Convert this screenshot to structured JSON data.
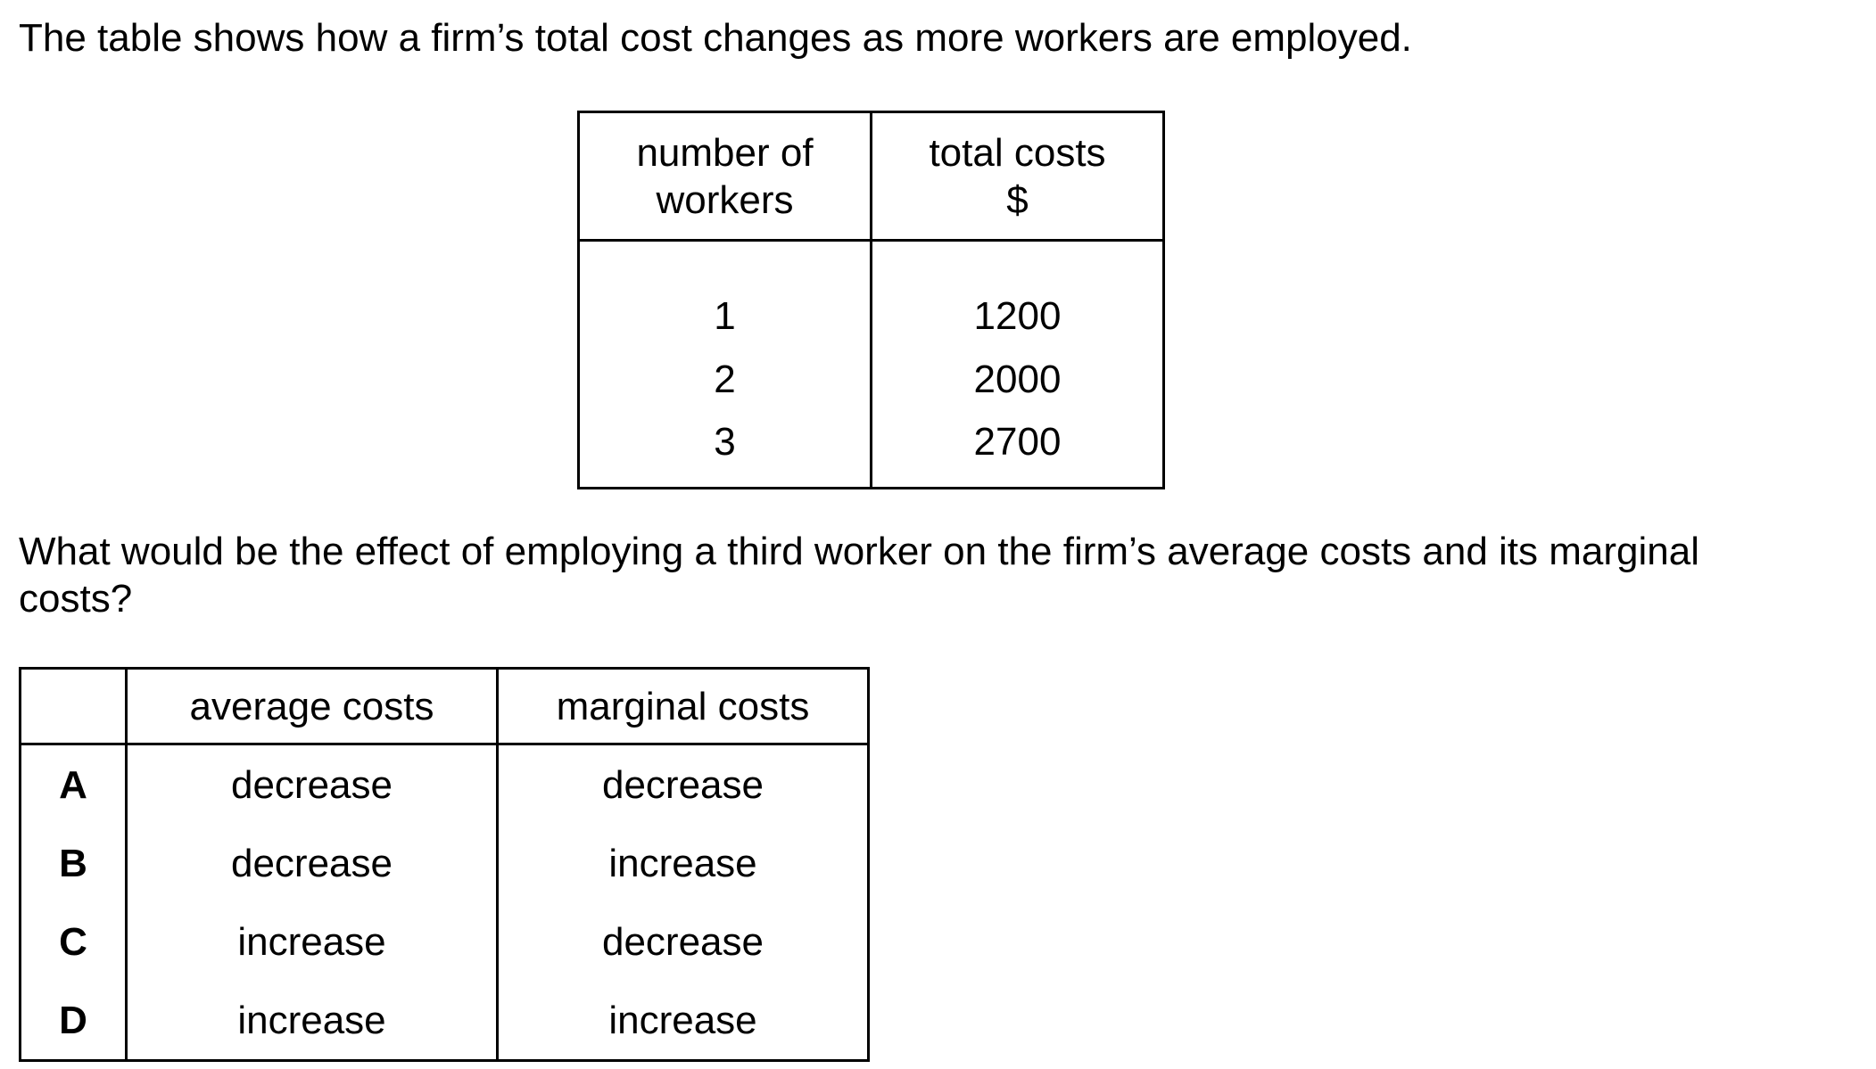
{
  "intro": "The table shows how a firm’s total cost changes as more workers are employed.",
  "cost_table": {
    "headers": {
      "workers_line1": "number of",
      "workers_line2": "workers",
      "costs_line1": "total costs",
      "costs_line2": "$"
    },
    "rows": [
      {
        "workers": "1",
        "cost": "1200"
      },
      {
        "workers": "2",
        "cost": "2000"
      },
      {
        "workers": "3",
        "cost": "2700"
      }
    ]
  },
  "question": {
    "line1": "What would be the effect of employing a third worker on the firm’s average costs and its marginal",
    "line2": "costs?"
  },
  "options_table": {
    "headers": {
      "key": "",
      "average": "average costs",
      "marginal": "marginal costs"
    },
    "rows": [
      {
        "key": "A",
        "average": "decrease",
        "marginal": "decrease"
      },
      {
        "key": "B",
        "average": "decrease",
        "marginal": "increase"
      },
      {
        "key": "C",
        "average": "increase",
        "marginal": "decrease"
      },
      {
        "key": "D",
        "average": "increase",
        "marginal": "increase"
      }
    ]
  }
}
